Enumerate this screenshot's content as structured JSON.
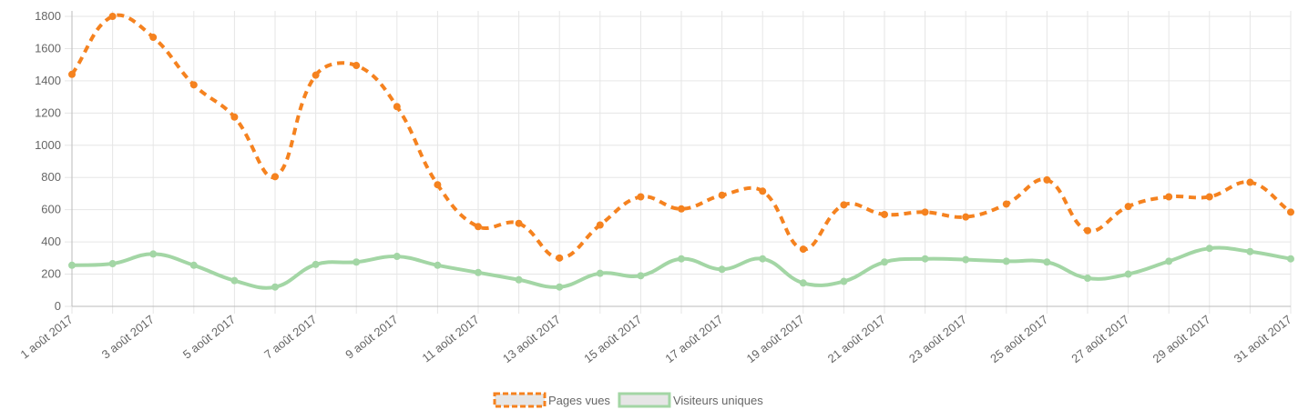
{
  "chart_data": {
    "type": "line",
    "categories": [
      "1 août 2017",
      null,
      "3 août 2017",
      null,
      "5 août 2017",
      null,
      "7 août 2017",
      null,
      "9 août 2017",
      null,
      "11 août 2017",
      null,
      "13 août 2017",
      null,
      "15 août 2017",
      null,
      "17 août 2017",
      null,
      "19 août 2017",
      null,
      "21 août 2017",
      null,
      "23 août 2017",
      null,
      "25 août 2017",
      null,
      "27 août 2017",
      null,
      "29 août 2017",
      null,
      "31 août 2017"
    ],
    "series": [
      {
        "name": "Pages vues",
        "color": "#f5821f",
        "dashed": true,
        "values": [
          1440,
          1800,
          1670,
          1375,
          1175,
          805,
          1435,
          1495,
          1240,
          755,
          495,
          515,
          300,
          505,
          680,
          605,
          690,
          715,
          355,
          630,
          570,
          585,
          555,
          635,
          785,
          470,
          620,
          680,
          680,
          770,
          585
        ]
      },
      {
        "name": "Visiteurs uniques",
        "color": "#a3d6a5",
        "dashed": false,
        "values": [
          255,
          265,
          325,
          255,
          160,
          120,
          260,
          275,
          310,
          255,
          210,
          165,
          120,
          205,
          190,
          295,
          230,
          295,
          145,
          155,
          275,
          295,
          290,
          280,
          275,
          175,
          200,
          280,
          360,
          340,
          295
        ]
      }
    ],
    "ylim": [
      0,
      1800
    ],
    "yticks": [
      0,
      200,
      400,
      600,
      800,
      1000,
      1200,
      1400,
      1600,
      1800
    ],
    "grid": true,
    "legend": "bottom"
  }
}
